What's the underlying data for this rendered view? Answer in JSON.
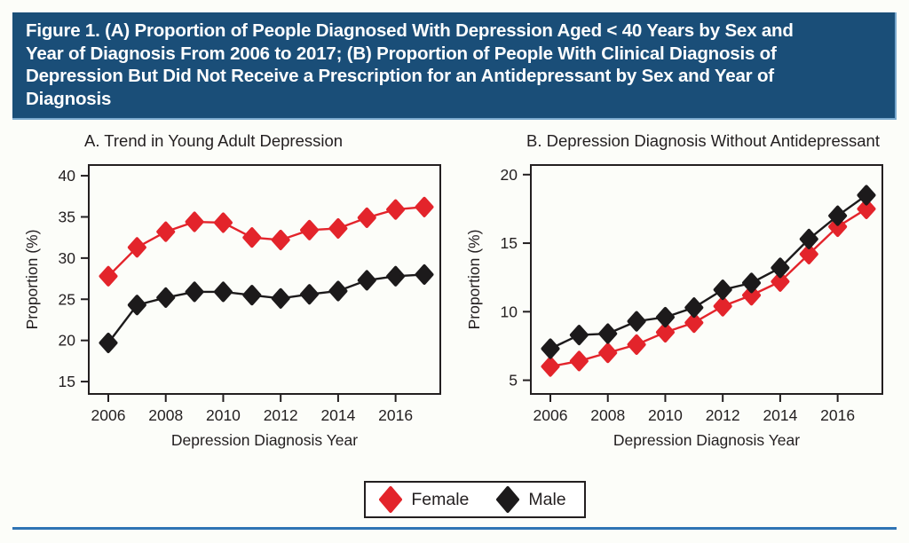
{
  "banner": {
    "title_lines": [
      "Figure 1. (A) Proportion of People Diagnosed With Depression Aged < 40 Years by Sex and",
      "Year of Diagnosis From 2006 to 2017; (B) Proportion of People With Clinical Diagnosis of",
      "Depression But Did Not Receive a Prescription for an Antidepressant by Sex and Year of",
      "Diagnosis"
    ]
  },
  "colors": {
    "banner_bg": "#1A4E78",
    "banner_text": "#FFFFFF",
    "footer_rule": "#2F74B4",
    "axis": "#231F20",
    "female": "#E3242B",
    "male": "#1C1A1B"
  },
  "legend": {
    "items": [
      {
        "label": "Female",
        "color": "#E3242B"
      },
      {
        "label": "Male",
        "color": "#1C1A1B"
      }
    ]
  },
  "chart_data": [
    {
      "type": "line",
      "panel": "A",
      "title": "A. Trend in Young Adult Depression",
      "xlabel": "Depression Diagnosis Year",
      "ylabel": "Proportion (%)",
      "x": [
        2006,
        2007,
        2008,
        2009,
        2010,
        2011,
        2012,
        2013,
        2014,
        2015,
        2016,
        2017
      ],
      "x_ticks": [
        2006,
        2008,
        2010,
        2012,
        2014,
        2016
      ],
      "y_ticks": [
        15,
        20,
        25,
        30,
        35,
        40
      ],
      "ylim": [
        13.5,
        41.3
      ],
      "grid": false,
      "marker": "diamond",
      "series": [
        {
          "name": "Female",
          "color": "#E3242B",
          "values": [
            27.8,
            31.3,
            33.2,
            34.4,
            34.3,
            32.5,
            32.2,
            33.4,
            33.6,
            34.9,
            35.9,
            36.2
          ]
        },
        {
          "name": "Male",
          "color": "#1C1A1B",
          "values": [
            19.7,
            24.3,
            25.2,
            25.9,
            25.9,
            25.5,
            25.1,
            25.6,
            26.0,
            27.3,
            27.8,
            28.0
          ]
        }
      ]
    },
    {
      "type": "line",
      "panel": "B",
      "title": "B. Depression Diagnosis Without Antidepressant",
      "xlabel": "Depression Diagnosis Year",
      "ylabel": "Proportion (%)",
      "x": [
        2006,
        2007,
        2008,
        2009,
        2010,
        2011,
        2012,
        2013,
        2014,
        2015,
        2016,
        2017
      ],
      "x_ticks": [
        2006,
        2008,
        2010,
        2012,
        2014,
        2016
      ],
      "y_ticks": [
        5,
        10,
        15,
        20
      ],
      "ylim": [
        4.0,
        20.7
      ],
      "grid": false,
      "marker": "diamond",
      "series": [
        {
          "name": "Female",
          "color": "#E3242B",
          "values": [
            6.0,
            6.4,
            7.0,
            7.6,
            8.5,
            9.2,
            10.4,
            11.2,
            12.2,
            14.2,
            16.2,
            17.5
          ]
        },
        {
          "name": "Male",
          "color": "#1C1A1B",
          "values": [
            7.3,
            8.3,
            8.4,
            9.3,
            9.6,
            10.3,
            11.6,
            12.1,
            13.2,
            15.3,
            17.0,
            18.5
          ]
        }
      ]
    }
  ]
}
